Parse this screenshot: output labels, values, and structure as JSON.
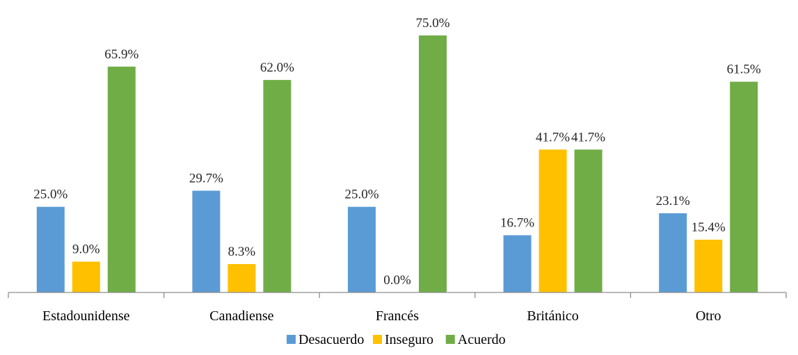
{
  "chart_data": {
    "type": "bar",
    "categories": [
      "Estadounidense",
      "Canadiense",
      "Francés",
      "Británico",
      "Otro"
    ],
    "series": [
      {
        "name": "Desacuerdo",
        "color": "#5B9BD5",
        "values": [
          25.0,
          29.7,
          25.0,
          16.7,
          23.1
        ]
      },
      {
        "name": "Inseguro",
        "color": "#FFC000",
        "values": [
          9.0,
          8.3,
          0.0,
          41.7,
          15.4
        ]
      },
      {
        "name": "Acuerdo",
        "color": "#70AD47",
        "values": [
          65.9,
          62.0,
          75.0,
          41.7,
          61.5
        ]
      }
    ],
    "value_suffix": "%",
    "ylim": [
      0,
      75
    ],
    "grid": false,
    "legend_position": "bottom"
  }
}
